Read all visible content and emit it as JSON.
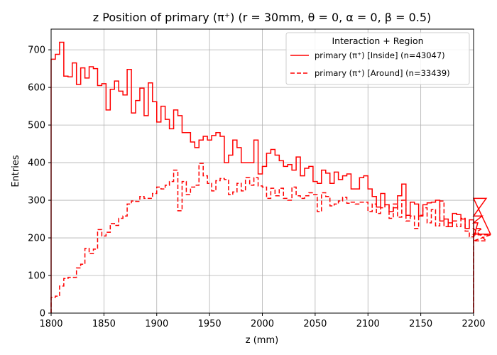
{
  "chart_data": {
    "type": "step-histogram",
    "title": "z Position of primary (π⁺) (r = 30mm, θ = 0, α = 0, β = 0.5)",
    "xlabel": "z (mm)",
    "ylabel": "Entries",
    "xlim": [
      1800,
      2200
    ],
    "ylim": [
      0,
      755
    ],
    "xticks": [
      1800,
      1850,
      1900,
      1950,
      2000,
      2050,
      2100,
      2150,
      2200
    ],
    "yticks": [
      0,
      100,
      200,
      300,
      400,
      500,
      600,
      700
    ],
    "grid": true,
    "legend": {
      "title": "Interaction + Region",
      "placement": "top-right"
    },
    "bin_width": 4,
    "series": [
      {
        "name": "primary (π⁺) [Inside] (n=43047)",
        "style": "solid",
        "color": "#ff0000",
        "values": [
          675,
          688,
          720,
          630,
          628,
          665,
          608,
          652,
          625,
          655,
          650,
          605,
          610,
          540,
          595,
          617,
          590,
          580,
          648,
          532,
          565,
          598,
          525,
          612,
          562,
          508,
          550,
          515,
          490,
          540,
          525,
          480,
          480,
          455,
          440,
          460,
          470,
          460,
          472,
          480,
          470,
          400,
          420,
          460,
          440,
          400,
          400,
          400,
          460,
          370,
          390,
          425,
          435,
          420,
          405,
          390,
          395,
          380,
          415,
          365,
          385,
          390,
          350,
          345,
          380,
          372,
          345,
          375,
          355,
          365,
          370,
          330,
          330,
          360,
          365,
          330,
          310,
          282,
          318,
          288,
          270,
          280,
          312,
          343,
          260,
          295,
          290,
          258,
          288,
          293,
          295,
          300,
          245,
          250,
          230,
          265,
          262,
          250,
          225,
          248,
          200,
          240,
          258,
          305,
          210
        ]
      },
      {
        "name": "primary (π⁺) [Around] (n=33439)",
        "style": "dashed",
        "color": "#ff0000",
        "values": [
          42,
          45,
          72,
          92,
          95,
          95,
          120,
          130,
          172,
          158,
          170,
          222,
          205,
          215,
          238,
          233,
          252,
          258,
          290,
          298,
          297,
          310,
          305,
          305,
          318,
          335,
          330,
          340,
          350,
          380,
          272,
          350,
          315,
          335,
          340,
          398,
          365,
          345,
          325,
          352,
          358,
          355,
          315,
          322,
          345,
          325,
          360,
          340,
          360,
          338,
          335,
          305,
          332,
          312,
          332,
          305,
          300,
          335,
          312,
          305,
          312,
          320,
          315,
          270,
          320,
          310,
          285,
          290,
          298,
          308,
          292,
          295,
          290,
          295,
          295,
          270,
          290,
          265,
          280,
          288,
          252,
          290,
          255,
          300,
          245,
          258,
          225,
          260,
          280,
          240,
          275,
          232,
          298,
          230,
          240,
          245,
          230,
          252,
          218,
          203,
          212,
          210,
          225,
          192,
          208
        ]
      }
    ]
  }
}
